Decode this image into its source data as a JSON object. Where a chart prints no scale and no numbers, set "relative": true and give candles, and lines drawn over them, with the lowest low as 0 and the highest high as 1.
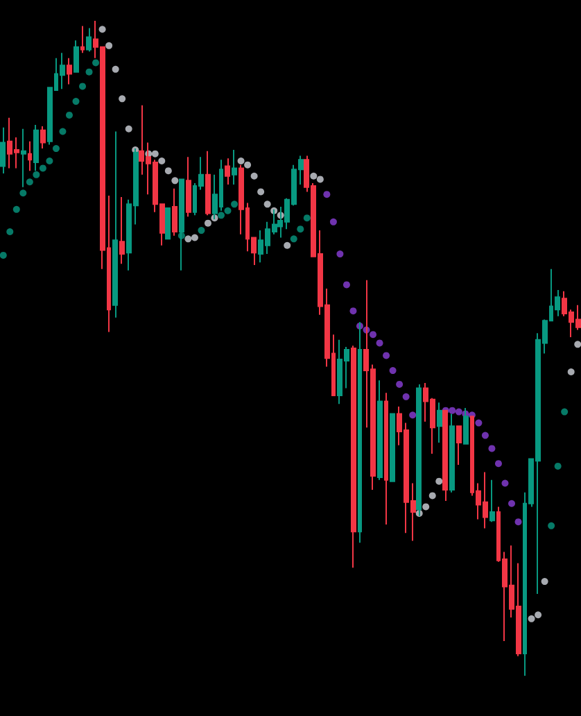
{
  "chart_data": {
    "type": "candlestick",
    "relative": true,
    "tick_labels": false,
    "marker": "circle",
    "categories": [
      null,
      null,
      null,
      null,
      null,
      null,
      null,
      null,
      null,
      null,
      null,
      null,
      null,
      null,
      null,
      null,
      null,
      null,
      null,
      null,
      null,
      null,
      null,
      null,
      null,
      null,
      null,
      null,
      null,
      null,
      null,
      null,
      null,
      null,
      null,
      null,
      null,
      null,
      null,
      null,
      null,
      null,
      null,
      null,
      null,
      null,
      null,
      null,
      null,
      null,
      null,
      null,
      null,
      null,
      null,
      null,
      null,
      null,
      null,
      null,
      null,
      null,
      null,
      null,
      null,
      null,
      null,
      null,
      null,
      null,
      null,
      null,
      null,
      null,
      null,
      null,
      null,
      null,
      null,
      null,
      null,
      null,
      null,
      null,
      null,
      null,
      null,
      null
    ],
    "ohlc": [
      [
        0.778,
        0.837,
        0.767,
        0.814
      ],
      [
        0.816,
        0.852,
        0.775,
        0.797
      ],
      [
        0.803,
        0.822,
        0.775,
        0.799
      ],
      [
        0.797,
        0.835,
        0.746,
        0.801
      ],
      [
        0.797,
        0.816,
        0.771,
        0.788
      ],
      [
        0.784,
        0.841,
        0.771,
        0.833
      ],
      [
        0.833,
        0.839,
        0.805,
        0.814
      ],
      [
        0.816,
        0.898,
        0.811,
        0.898
      ],
      [
        0.894,
        0.943,
        0.894,
        0.919
      ],
      [
        0.917,
        0.951,
        0.896,
        0.932
      ],
      [
        0.932,
        0.943,
        0.903,
        0.919
      ],
      [
        0.922,
        0.97,
        0.922,
        0.96
      ],
      [
        0.96,
        0.992,
        0.951,
        0.956
      ],
      [
        0.956,
        0.989,
        0.953,
        0.975
      ],
      [
        0.972,
        1,
        0.943,
        0.96
      ],
      [
        0.96,
        0.96,
        0.621,
        0.65
      ],
      [
        0.653,
        0.733,
        0.525,
        0.559
      ],
      [
        0.566,
        0.831,
        0.547,
        0.665
      ],
      [
        0.663,
        0.731,
        0.629,
        0.644
      ],
      [
        0.646,
        0.727,
        0.619,
        0.72
      ],
      [
        0.718,
        0.805,
        0.689,
        0.799
      ],
      [
        0.801,
        0.871,
        0.765,
        0.786
      ],
      [
        0.792,
        0.814,
        0.735,
        0.782
      ],
      [
        0.784,
        0.788,
        0.708,
        0.72
      ],
      [
        0.72,
        0.72,
        0.657,
        0.676
      ],
      [
        0.667,
        0.714,
        0.667,
        0.714
      ],
      [
        0.716,
        0.744,
        0.672,
        0.678
      ],
      [
        0.678,
        0.758,
        0.619,
        0.758
      ],
      [
        0.756,
        0.792,
        0.701,
        0.708
      ],
      [
        0.708,
        0.752,
        0.703,
        0.748
      ],
      [
        0.748,
        0.792,
        0.742,
        0.765
      ],
      [
        0.765,
        0.801,
        0.703,
        0.706
      ],
      [
        0.706,
        0.765,
        0.697,
        0.735
      ],
      [
        0.716,
        0.788,
        0.71,
        0.773
      ],
      [
        0.778,
        0.79,
        0.75,
        0.763
      ],
      [
        0.765,
        0.803,
        0.75,
        0.775
      ],
      [
        0.775,
        0.78,
        0.674,
        0.712
      ],
      [
        0.714,
        0.722,
        0.648,
        0.667
      ],
      [
        0.669,
        0.669,
        0.627,
        0.646
      ],
      [
        0.644,
        0.68,
        0.631,
        0.665
      ],
      [
        0.657,
        0.693,
        0.644,
        0.682
      ],
      [
        0.678,
        0.712,
        0.674,
        0.689
      ],
      [
        0.686,
        0.716,
        0.669,
        0.695
      ],
      [
        0.693,
        0.729,
        0.682,
        0.727
      ],
      [
        0.72,
        0.78,
        0.718,
        0.773
      ],
      [
        0.773,
        0.794,
        0.75,
        0.788
      ],
      [
        0.788,
        0.794,
        0.739,
        0.746
      ],
      [
        0.748,
        0.752,
        0.64,
        0.64
      ],
      [
        0.644,
        0.68,
        0.551,
        0.564
      ],
      [
        0.566,
        0.591,
        0.472,
        0.485
      ],
      [
        0.492,
        0.521,
        0.428,
        0.428
      ],
      [
        0.428,
        0.513,
        0.415,
        0.483
      ],
      [
        0.481,
        0.502,
        0.439,
        0.498
      ],
      [
        0.5,
        0.504,
        0.165,
        0.22
      ],
      [
        0.22,
        0.54,
        0.203,
        0.498
      ],
      [
        0.498,
        0.604,
        0.379,
        0.466
      ],
      [
        0.468,
        0.475,
        0.284,
        0.305
      ],
      [
        0.303,
        0.451,
        0.299,
        0.419
      ],
      [
        0.419,
        0.432,
        0.231,
        0.299
      ],
      [
        0.297,
        0.4,
        0.297,
        0.4
      ],
      [
        0.4,
        0.411,
        0.352,
        0.373
      ],
      [
        0.375,
        0.386,
        0.218,
        0.265
      ],
      [
        0.267,
        0.294,
        0.206,
        0.25
      ],
      [
        0.254,
        0.445,
        0.244,
        0.439
      ],
      [
        0.439,
        0.447,
        0.388,
        0.419
      ],
      [
        0.422,
        0.424,
        0.339,
        0.379
      ],
      [
        0.381,
        0.417,
        0.356,
        0.405
      ],
      [
        0.405,
        0.405,
        0.267,
        0.284
      ],
      [
        0.284,
        0.4,
        0.28,
        0.381
      ],
      [
        0.381,
        0.381,
        0.322,
        0.356
      ],
      [
        0.354,
        0.409,
        0.354,
        0.396
      ],
      [
        0.396,
        0.396,
        0.275,
        0.28
      ],
      [
        0.282,
        0.294,
        0.239,
        0.261
      ],
      [
        0.265,
        0.311,
        0.225,
        0.242
      ],
      [
        0.237,
        0.299,
        0.235,
        0.25
      ],
      [
        0.25,
        0.258,
        0.174,
        0.176
      ],
      [
        0.178,
        0.189,
        0.053,
        0.136
      ],
      [
        0.138,
        0.199,
        0.089,
        0.102
      ],
      [
        0.106,
        0.172,
        0.03,
        0.034
      ],
      [
        0.034,
        0.28,
        0,
        0.263
      ],
      [
        0.263,
        0.331,
        0.258,
        0.331
      ],
      [
        0.328,
        0.523,
        0.125,
        0.513
      ],
      [
        0.508,
        0.544,
        0.492,
        0.542
      ],
      [
        0.542,
        0.621,
        0.542,
        0.564
      ],
      [
        0.559,
        0.589,
        0.549,
        0.578
      ],
      [
        0.576,
        0.587,
        0.549,
        0.553
      ],
      [
        0.555,
        0.559,
        0.517,
        0.54
      ],
      [
        0.544,
        0.566,
        0.528,
        0.532
      ]
    ],
    "colors": [
      "#089981",
      "#f23645",
      "#f23645",
      "#089981",
      "#f23645",
      "#089981",
      "#f23645",
      "#089981",
      "#089981",
      "#089981",
      "#f23645",
      "#089981",
      "#f23645",
      "#089981",
      "#f23645",
      "#f23645",
      "#f23645",
      "#089981",
      "#f23645",
      "#089981",
      "#089981",
      "#f23645",
      "#f23645",
      "#f23645",
      "#f23645",
      "#089981",
      "#f23645",
      "#089981",
      "#f23645",
      "#089981",
      "#089981",
      "#f23645",
      "#089981",
      "#089981",
      "#f23645",
      "#089981",
      "#f23645",
      "#f23645",
      "#f23645",
      "#089981",
      "#089981",
      "#089981",
      "#089981",
      "#089981",
      "#089981",
      "#089981",
      "#f23645",
      "#f23645",
      "#f23645",
      "#f23645",
      "#f23645",
      "#089981",
      "#089981",
      "#f23645",
      "#089981",
      "#f23645",
      "#f23645",
      "#089981",
      "#f23645",
      "#089981",
      "#f23645",
      "#f23645",
      "#f23645",
      "#089981",
      "#f23645",
      "#f23645",
      "#089981",
      "#f23645",
      "#089981",
      "#f23645",
      "#089981",
      "#f23645",
      "#f23645",
      "#f23645",
      "#089981",
      "#f23645",
      "#f23645",
      "#f23645",
      "#f23645",
      "#089981",
      "#089981",
      "#089981",
      "#089981",
      "#089981",
      "#089981",
      "#f23645",
      "#f23645",
      "#f23645"
    ],
    "series": [
      {
        "type": "scatter",
        "color": "#089981",
        "values": [
          0.642,
          0.678,
          0.712,
          0.737,
          0.754,
          0.765,
          0.775,
          0.786,
          0.805,
          0.831,
          0.856,
          0.877,
          0.9,
          0.922,
          0.936,
          null,
          null,
          null,
          null,
          null,
          null,
          null,
          null,
          null,
          null,
          null,
          null,
          0.672,
          null,
          null,
          0.68,
          null,
          null,
          0.703,
          0.71,
          0.72,
          null,
          null,
          null,
          null,
          null,
          null,
          null,
          null,
          0.667,
          0.682,
          0.699,
          null,
          null,
          null,
          null,
          null,
          null,
          null,
          null,
          null,
          null,
          null,
          null,
          null,
          null,
          null,
          null,
          null,
          null,
          null,
          null,
          null,
          null,
          null,
          null,
          null,
          null,
          null,
          null,
          null,
          null,
          null,
          null,
          null,
          null,
          null,
          null,
          0.229,
          0.32,
          0.403,
          null,
          null
        ]
      },
      {
        "type": "scatter",
        "color": "#d1d4dc",
        "values": [
          null,
          null,
          null,
          null,
          null,
          null,
          null,
          null,
          null,
          null,
          null,
          null,
          null,
          null,
          null,
          0.987,
          0.962,
          0.926,
          0.881,
          0.835,
          0.803,
          null,
          0.797,
          0.797,
          0.786,
          0.771,
          0.756,
          null,
          0.667,
          0.669,
          null,
          0.691,
          0.699,
          null,
          null,
          null,
          0.786,
          0.78,
          0.763,
          0.739,
          0.72,
          0.71,
          0.703,
          0.657,
          null,
          null,
          null,
          0.763,
          0.758,
          null,
          null,
          null,
          null,
          null,
          null,
          null,
          null,
          null,
          null,
          null,
          null,
          null,
          null,
          0.248,
          0.258,
          0.275,
          0.297,
          null,
          null,
          null,
          null,
          null,
          null,
          null,
          null,
          null,
          null,
          null,
          null,
          null,
          0.087,
          0.093,
          0.144,
          null,
          null,
          null,
          0.464,
          0.506
        ]
      },
      {
        "type": "scatter",
        "color": "#8b3fd9",
        "values": [
          null,
          null,
          null,
          null,
          null,
          null,
          null,
          null,
          null,
          null,
          null,
          null,
          null,
          null,
          null,
          null,
          null,
          null,
          null,
          null,
          null,
          null,
          null,
          null,
          null,
          null,
          null,
          null,
          null,
          null,
          null,
          null,
          null,
          null,
          null,
          null,
          null,
          null,
          null,
          null,
          null,
          null,
          null,
          null,
          null,
          null,
          null,
          null,
          null,
          0.735,
          0.693,
          0.644,
          0.597,
          0.557,
          0.534,
          0.528,
          0.521,
          0.508,
          0.489,
          0.466,
          0.445,
          0.426,
          0.398,
          null,
          null,
          null,
          null,
          0.405,
          0.405,
          0.403,
          0.4,
          0.398,
          0.386,
          0.367,
          0.347,
          0.324,
          0.294,
          0.263,
          0.235,
          null,
          null,
          null,
          null,
          null,
          null,
          null,
          null,
          null
        ]
      }
    ]
  }
}
